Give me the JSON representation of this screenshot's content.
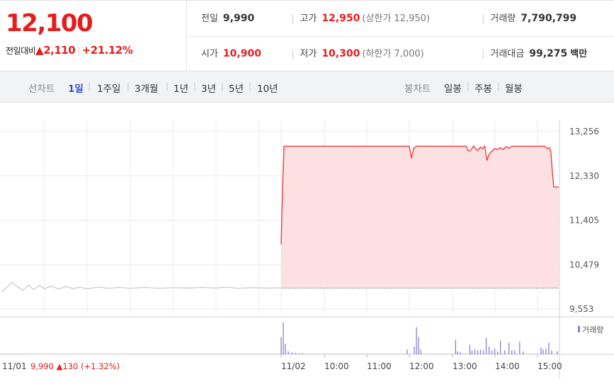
{
  "summary": {
    "current_price": "12,100",
    "change_label": "전일대비",
    "change_arrow": "▲",
    "change_value": "2,110",
    "change_percent": "+21.12%",
    "prev_close": {
      "label": "전일",
      "value": "9,990"
    },
    "high": {
      "label": "고가",
      "value": "12,950",
      "note": "(상한가 12,950)"
    },
    "volume": {
      "label": "거래량",
      "value": "7,790,799"
    },
    "open": {
      "label": "시가",
      "value": "10,900"
    },
    "low": {
      "label": "저가",
      "value": "10,300",
      "note": "(하한가 7,000)"
    },
    "trade_value": {
      "label": "거래대금",
      "value": "99,275",
      "unit": "백만"
    }
  },
  "tabs": {
    "line_chart_label": "선차트",
    "periods": [
      "1일",
      "1주일",
      "3개월",
      "1년",
      "3년",
      "5년",
      "10년"
    ],
    "active_period": "1일",
    "candle_chart_label": "봉차트",
    "candle_periods": [
      "일봉",
      "주봉",
      "월봉"
    ]
  },
  "chart_data": {
    "type": "line",
    "y_ticks": [
      "13,256",
      "12,330",
      "11,405",
      "10,479",
      "9,553"
    ],
    "ylim": [
      9553,
      13256
    ],
    "x_ticks": [
      "11/02",
      "10:00",
      "11:00",
      "12:00",
      "13:00",
      "14:00",
      "15:00"
    ],
    "prev_day_label": "11/01",
    "prev_day_close": "9,990",
    "prev_day_change": "▲130 (+1.32%)",
    "reference_price": 9990,
    "colors": {
      "today_line": "#ee4040",
      "today_fill": "#fde0e2",
      "prev_line": "#c8c8c8",
      "volume_bar": "#8e7ecf",
      "reference": "#555555"
    },
    "prev_day_series": [
      {
        "x": 0,
        "y": 9900
      },
      {
        "x": 8,
        "y": 10010
      },
      {
        "x": 15,
        "y": 10110
      },
      {
        "x": 22,
        "y": 10020
      },
      {
        "x": 30,
        "y": 9950
      },
      {
        "x": 38,
        "y": 10050
      },
      {
        "x": 45,
        "y": 9960
      },
      {
        "x": 53,
        "y": 10040
      },
      {
        "x": 60,
        "y": 9980
      },
      {
        "x": 70,
        "y": 10030
      },
      {
        "x": 80,
        "y": 9970
      },
      {
        "x": 90,
        "y": 10020
      },
      {
        "x": 100,
        "y": 9980
      },
      {
        "x": 110,
        "y": 10010
      },
      {
        "x": 120,
        "y": 9975
      },
      {
        "x": 135,
        "y": 10010
      },
      {
        "x": 150,
        "y": 9985
      },
      {
        "x": 165,
        "y": 10005
      },
      {
        "x": 180,
        "y": 9985
      },
      {
        "x": 200,
        "y": 10005
      },
      {
        "x": 220,
        "y": 9985
      },
      {
        "x": 240,
        "y": 10000
      },
      {
        "x": 260,
        "y": 9990
      },
      {
        "x": 280,
        "y": 10005
      },
      {
        "x": 300,
        "y": 9990
      },
      {
        "x": 315,
        "y": 10010
      },
      {
        "x": 330,
        "y": 9985
      },
      {
        "x": 350,
        "y": 10000
      },
      {
        "x": 370,
        "y": 9990
      },
      {
        "x": 390,
        "y": 9995
      }
    ],
    "today_series": [
      {
        "x": 0,
        "y": 10900
      },
      {
        "x": 2,
        "y": 12100
      },
      {
        "x": 4,
        "y": 12950
      },
      {
        "x": 60,
        "y": 12950
      },
      {
        "x": 120,
        "y": 12950
      },
      {
        "x": 180,
        "y": 12950
      },
      {
        "x": 183,
        "y": 12700
      },
      {
        "x": 186,
        "y": 12900
      },
      {
        "x": 190,
        "y": 12950
      },
      {
        "x": 220,
        "y": 12950
      },
      {
        "x": 260,
        "y": 12950
      },
      {
        "x": 263,
        "y": 12850
      },
      {
        "x": 266,
        "y": 12860
      },
      {
        "x": 270,
        "y": 12950
      },
      {
        "x": 276,
        "y": 12860
      },
      {
        "x": 280,
        "y": 12930
      },
      {
        "x": 283,
        "y": 12900
      },
      {
        "x": 286,
        "y": 12950
      },
      {
        "x": 289,
        "y": 12650
      },
      {
        "x": 292,
        "y": 12780
      },
      {
        "x": 296,
        "y": 12850
      },
      {
        "x": 300,
        "y": 12900
      },
      {
        "x": 304,
        "y": 12880
      },
      {
        "x": 308,
        "y": 12920
      },
      {
        "x": 312,
        "y": 12880
      },
      {
        "x": 316,
        "y": 12940
      },
      {
        "x": 320,
        "y": 12910
      },
      {
        "x": 324,
        "y": 12950
      },
      {
        "x": 340,
        "y": 12950
      },
      {
        "x": 360,
        "y": 12950
      },
      {
        "x": 370,
        "y": 12950
      },
      {
        "x": 374,
        "y": 12900
      },
      {
        "x": 377,
        "y": 12920
      },
      {
        "x": 379,
        "y": 12830
      },
      {
        "x": 381,
        "y": 12400
      },
      {
        "x": 383,
        "y": 12100
      },
      {
        "x": 390,
        "y": 12100
      }
    ],
    "volume_legend": "거래량",
    "volume": [
      {
        "x": 0,
        "v": 18
      },
      {
        "x": 3,
        "v": 33
      },
      {
        "x": 6,
        "v": 11
      },
      {
        "x": 10,
        "v": 3
      },
      {
        "x": 15,
        "v": 2
      },
      {
        "x": 20,
        "v": 1.5
      },
      {
        "x": 25,
        "v": 1
      },
      {
        "x": 30,
        "v": 1
      },
      {
        "x": 177,
        "v": 5
      },
      {
        "x": 187,
        "v": 8
      },
      {
        "x": 190,
        "v": 28
      },
      {
        "x": 193,
        "v": 18
      },
      {
        "x": 196,
        "v": 5
      },
      {
        "x": 245,
        "v": 15
      },
      {
        "x": 248,
        "v": 3
      },
      {
        "x": 252,
        "v": 2
      },
      {
        "x": 265,
        "v": 10
      },
      {
        "x": 268,
        "v": 4
      },
      {
        "x": 272,
        "v": 5
      },
      {
        "x": 276,
        "v": 4
      },
      {
        "x": 280,
        "v": 5
      },
      {
        "x": 284,
        "v": 4
      },
      {
        "x": 288,
        "v": 17
      },
      {
        "x": 292,
        "v": 8
      },
      {
        "x": 296,
        "v": 4
      },
      {
        "x": 300,
        "v": 6
      },
      {
        "x": 304,
        "v": 3
      },
      {
        "x": 308,
        "v": 14
      },
      {
        "x": 314,
        "v": 4
      },
      {
        "x": 320,
        "v": 12
      },
      {
        "x": 324,
        "v": 4
      },
      {
        "x": 328,
        "v": 4
      },
      {
        "x": 335,
        "v": 13
      },
      {
        "x": 340,
        "v": 3
      },
      {
        "x": 365,
        "v": 7
      },
      {
        "x": 368,
        "v": 5
      },
      {
        "x": 372,
        "v": 6
      },
      {
        "x": 376,
        "v": 12
      },
      {
        "x": 380,
        "v": 4
      },
      {
        "x": 388,
        "v": 3
      }
    ]
  }
}
